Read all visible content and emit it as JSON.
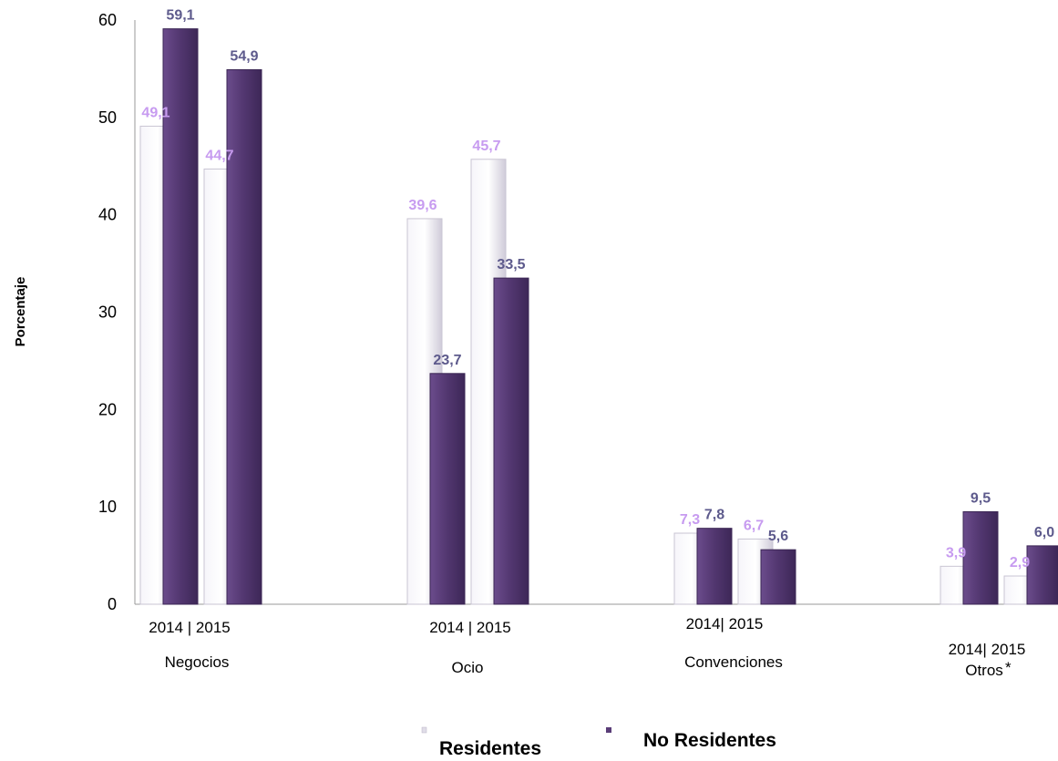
{
  "chart_data": {
    "type": "bar",
    "ylabel": "Porcentaje",
    "ylim": [
      0,
      60
    ],
    "yticks": [
      0,
      10,
      20,
      30,
      40,
      50,
      60
    ],
    "categories": [
      "Negocios",
      "Ocio",
      "Convenciones",
      "Otros"
    ],
    "subcategory_labels": [
      "2014 |  2015",
      "2014 |  2015",
      "2014|  2015",
      "2014|  2015"
    ],
    "footnote_marks": [
      "",
      "",
      "",
      "*"
    ],
    "series": [
      {
        "name": "Residentes",
        "year": "2014",
        "values": [
          49.1,
          39.6,
          7.3,
          3.9
        ],
        "labels": [
          "49,1",
          "39,6",
          "7,3",
          "3,9"
        ]
      },
      {
        "name": "No Residentes",
        "year": "2014",
        "values": [
          59.1,
          23.7,
          7.8,
          9.5
        ],
        "labels": [
          "59,1",
          "23,7",
          "7,8",
          "9,5"
        ]
      },
      {
        "name": "Residentes",
        "year": "2015",
        "values": [
          44.7,
          45.7,
          6.7,
          2.9
        ],
        "labels": [
          "44,7",
          "45,7",
          "6,7",
          "2,9"
        ]
      },
      {
        "name": "No Residentes",
        "year": "2015",
        "values": [
          54.9,
          33.5,
          5.6,
          6.0
        ],
        "labels": [
          "54,9",
          "33,5",
          "5,6",
          "6,0"
        ]
      }
    ],
    "legend": {
      "position": "bottom",
      "items": [
        {
          "label": "Residentes",
          "color": "#e6e3ee"
        },
        {
          "label": "No Residentes",
          "color": "#5a3d78"
        }
      ]
    },
    "colors": {
      "residentes_bar": "#e6e3ee",
      "no_residentes_bar": "#5a3d78",
      "residentes_label": "#c79bf0",
      "no_residentes_label": "#5d5a8c"
    }
  }
}
